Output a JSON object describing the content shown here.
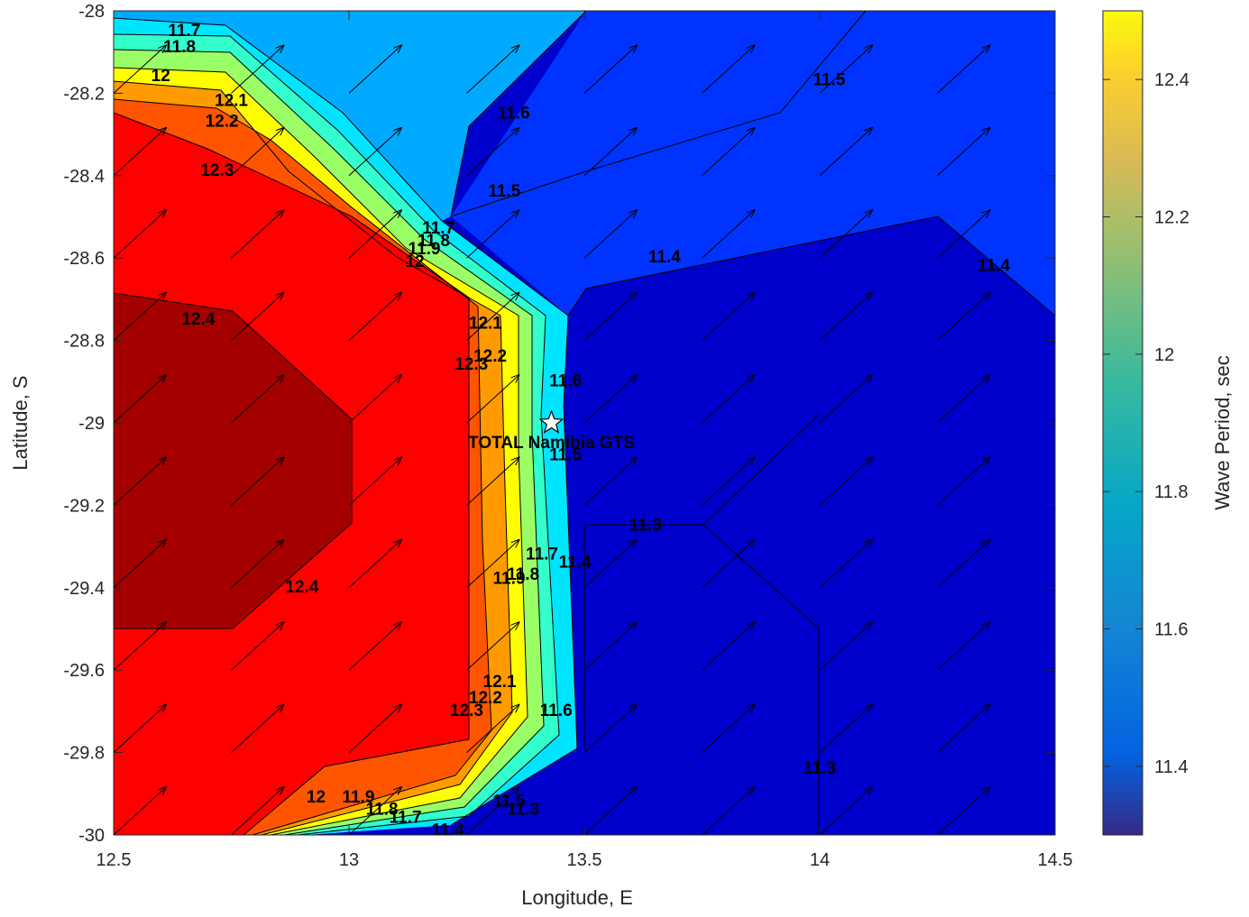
{
  "chart_data": {
    "type": "contour",
    "title": "",
    "xlabel": "Longitude, E",
    "ylabel": "Latitude, S",
    "colorbar_label": "Wave Period, sec",
    "xlim": [
      12.5,
      14.5
    ],
    "ylim": [
      -30,
      -28
    ],
    "xticks": [
      "12.5",
      "13",
      "13.5",
      "14",
      "14.5"
    ],
    "yticks": [
      "-28",
      "-28.2",
      "-28.4",
      "-28.6",
      "-28.8",
      "-29",
      "-29.2",
      "-29.4",
      "-29.6",
      "-29.8",
      "-30"
    ],
    "colorbar_ticks": [
      "12.4",
      "12.2",
      "12",
      "11.8",
      "11.6",
      "11.4"
    ],
    "colorbar_range": [
      11.3,
      12.5
    ],
    "colormap": "parula",
    "grid": false,
    "station": {
      "name": "TOTAL Namibia GTS",
      "lon": 13.43,
      "lat": -29.0,
      "marker": "white star"
    },
    "vector_field": {
      "direction": "toward north-east",
      "grid_spacing_lon": 0.25,
      "grid_spacing_lat": 0.2
    },
    "regions": [
      {
        "level": 12.4,
        "color": "#a50000",
        "description_lons": [
          12.5,
          13.0
        ],
        "description_lats": [
          -28.7,
          -29.5
        ]
      },
      {
        "level": 12.3,
        "color": "#ff0000"
      },
      {
        "level": 12.2,
        "color": "#ff5500"
      },
      {
        "level": 12.1,
        "color": "#ff9a00"
      },
      {
        "level": 12.0,
        "color": "#ffff00"
      },
      {
        "level": 11.9,
        "color": "#9aff66"
      },
      {
        "level": 11.8,
        "color": "#33ffcc"
      },
      {
        "level": 11.7,
        "color": "#00e5ff"
      },
      {
        "level": 11.6,
        "color": "#00aaff"
      },
      {
        "level": 11.5,
        "color": "#0033ff"
      },
      {
        "level": 11.4,
        "color": "#0000cc"
      }
    ],
    "contour_labels": [
      {
        "text": "11.7",
        "lon": 12.65,
        "lat": -28.05
      },
      {
        "text": "11.8",
        "lon": 12.64,
        "lat": -28.09
      },
      {
        "text": "12",
        "lon": 12.6,
        "lat": -28.16
      },
      {
        "text": "12.1",
        "lon": 12.75,
        "lat": -28.22
      },
      {
        "text": "12.2",
        "lon": 12.73,
        "lat": -28.27
      },
      {
        "text": "12.3",
        "lon": 12.72,
        "lat": -28.39
      },
      {
        "text": "12.4",
        "lon": 12.68,
        "lat": -28.75
      },
      {
        "text": "12.4",
        "lon": 12.9,
        "lat": -29.4
      },
      {
        "text": "11.6",
        "lon": 13.35,
        "lat": -28.25
      },
      {
        "text": "11.5",
        "lon": 13.33,
        "lat": -28.44
      },
      {
        "text": "11.5",
        "lon": 14.02,
        "lat": -28.17
      },
      {
        "text": "11.4",
        "lon": 13.67,
        "lat": -28.6
      },
      {
        "text": "11.4",
        "lon": 14.37,
        "lat": -28.62
      },
      {
        "text": "11.7",
        "lon": 13.19,
        "lat": -28.53
      },
      {
        "text": "11.8",
        "lon": 13.18,
        "lat": -28.56
      },
      {
        "text": "11.9",
        "lon": 13.16,
        "lat": -28.58
      },
      {
        "text": "12",
        "lon": 13.14,
        "lat": -28.61
      },
      {
        "text": "12.1",
        "lon": 13.29,
        "lat": -28.76
      },
      {
        "text": "12.2",
        "lon": 13.3,
        "lat": -28.84
      },
      {
        "text": "12.3",
        "lon": 13.26,
        "lat": -28.86
      },
      {
        "text": "11.6",
        "lon": 13.46,
        "lat": -28.9
      },
      {
        "text": "11.5",
        "lon": 13.46,
        "lat": -29.08
      },
      {
        "text": "11.4",
        "lon": 13.48,
        "lat": -29.34
      },
      {
        "text": "11.3",
        "lon": 13.63,
        "lat": -29.25
      },
      {
        "text": "11.7",
        "lon": 13.41,
        "lat": -29.32
      },
      {
        "text": "11.8",
        "lon": 13.37,
        "lat": -29.37
      },
      {
        "text": "11.9",
        "lon": 13.34,
        "lat": -29.38
      },
      {
        "text": "12.1",
        "lon": 13.32,
        "lat": -29.63
      },
      {
        "text": "12.2",
        "lon": 13.29,
        "lat": -29.67
      },
      {
        "text": "12.3",
        "lon": 13.25,
        "lat": -29.7
      },
      {
        "text": "11.6",
        "lon": 13.44,
        "lat": -29.7
      },
      {
        "text": "11.3",
        "lon": 14.0,
        "lat": -29.84
      },
      {
        "text": "12",
        "lon": 12.93,
        "lat": -29.91
      },
      {
        "text": "11.9",
        "lon": 13.02,
        "lat": -29.91
      },
      {
        "text": "11.8",
        "lon": 13.07,
        "lat": -29.94
      },
      {
        "text": "11.7",
        "lon": 13.12,
        "lat": -29.96
      },
      {
        "text": "11.5",
        "lon": 13.34,
        "lat": -29.92
      },
      {
        "text": "11.3",
        "lon": 13.37,
        "lat": -29.94
      },
      {
        "text": "11.4",
        "lon": 13.21,
        "lat": -29.99
      }
    ]
  }
}
